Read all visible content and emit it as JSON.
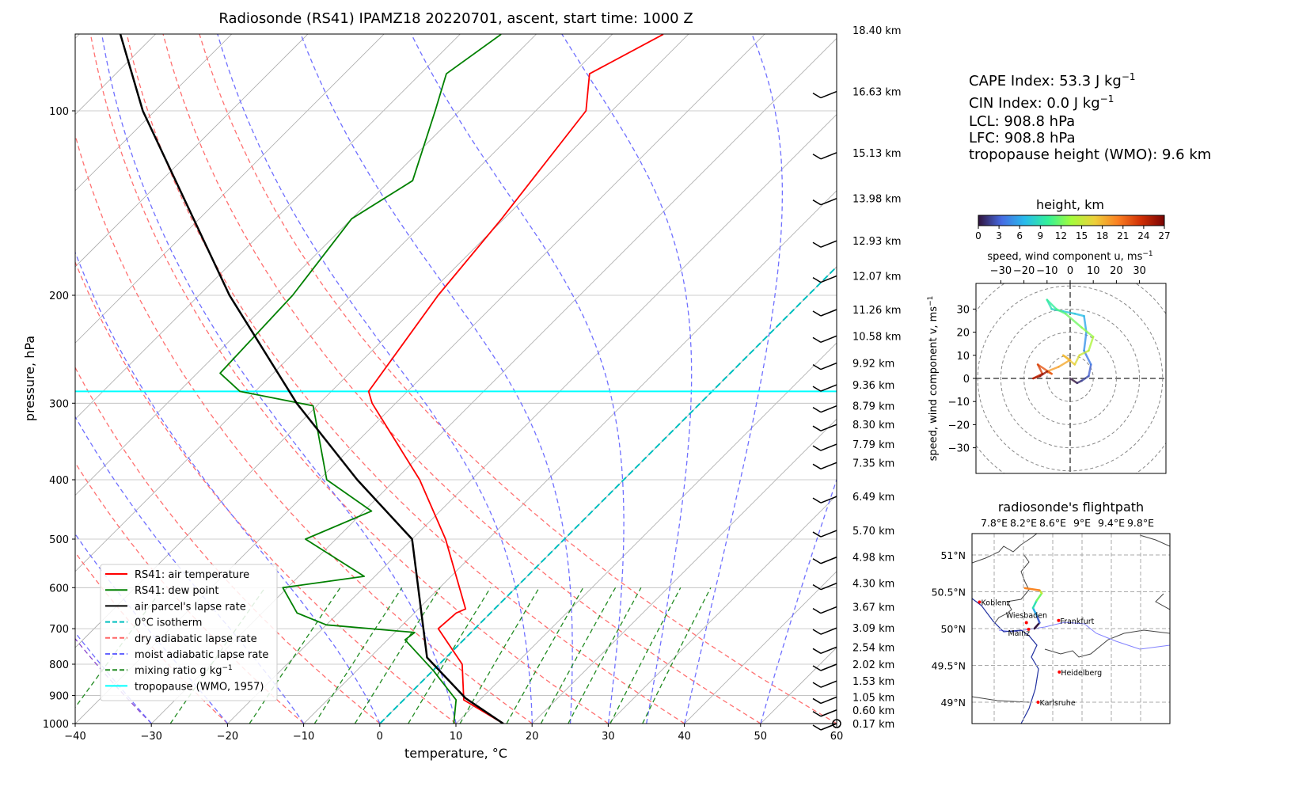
{
  "chart_data": [
    {
      "type": "line",
      "subtype": "skew-t log-p",
      "title": "Radiosonde (RS41) IPAMZ18 20220701, ascent, start time: 1000 Z",
      "xlabel": "temperature, °C",
      "ylabel": "pressure, hPa",
      "xlim": [
        -40,
        60
      ],
      "ylim": [
        1000,
        75
      ],
      "xticks": [
        -40,
        -30,
        -20,
        -10,
        0,
        10,
        20,
        30,
        40,
        50,
        60
      ],
      "yticks": [
        100,
        200,
        300,
        400,
        500,
        600,
        700,
        800,
        900,
        1000
      ],
      "legend": {
        "placement": "lower-left",
        "entries": [
          {
            "label": "RS41: air temperature",
            "color": "#ff0000",
            "style": "solid"
          },
          {
            "label": "RS41: dew point",
            "color": "#008000",
            "style": "solid"
          },
          {
            "label": "air parcel's lapse rate",
            "color": "#000000",
            "style": "solid"
          },
          {
            "label": "0°C isotherm",
            "color": "#00bfbf",
            "style": "dashed"
          },
          {
            "label": "dry adiabatic lapse rate",
            "color": "#ff6666",
            "style": "dashed"
          },
          {
            "label": "moist adiabatic lapse rate",
            "color": "#6666ff",
            "style": "dashed"
          },
          {
            "label": "mixing ratio g kg",
            "sup": "−1",
            "color": "#228b22",
            "style": "dashed"
          },
          {
            "label": "tropopause (WMO, 1957)",
            "color": "#00ffff",
            "style": "solid"
          }
        ]
      },
      "series": [
        {
          "name": "RS41: air temperature",
          "pressure": [
            1000,
            915,
            800,
            700,
            660,
            650,
            500,
            400,
            300,
            287,
            200,
            150,
            100,
            87,
            75
          ],
          "temperature": [
            16.2,
            7.9,
            3.0,
            -4.8,
            -4.5,
            -3.8,
            -15.6,
            -26.8,
            -43.1,
            -45.1,
            -48.6,
            -50.3,
            -53.4,
            -57.8,
            -53.3
          ]
        },
        {
          "name": "RS41: dew point",
          "pressure": [
            1000,
            915,
            820,
            730,
            710,
            690,
            660,
            600,
            575,
            500,
            450,
            400,
            303,
            287,
            268,
            200,
            150,
            130,
            100,
            87,
            75
          ],
          "temperature": [
            9.7,
            6.9,
            0.1,
            -7.7,
            -7.4,
            -20,
            -25.4,
            -30.6,
            -21.4,
            -34,
            -29,
            -39,
            -50.5,
            -62,
            -67,
            -67.7,
            -70,
            -67,
            -73.2,
            -76.6,
            -74.6
          ]
        },
        {
          "name": "air parcel's lapse rate",
          "pressure": [
            1000,
            909,
            780,
            500,
            400,
            300,
            200,
            100,
            75
          ],
          "temperature": [
            16.2,
            7.9,
            -2.5,
            -20,
            -35,
            -53,
            -76,
            -111.6,
            -124.6
          ]
        }
      ],
      "tropopause_hpa": 287,
      "height_labels": [
        {
          "p": 1000,
          "label": "0.17 km"
        },
        {
          "p": 950,
          "label": "0.60 km"
        },
        {
          "p": 905,
          "label": "1.05 km"
        },
        {
          "p": 852,
          "label": "1.53 km"
        },
        {
          "p": 800,
          "label": "2.02 km"
        },
        {
          "p": 750,
          "label": "2.54 km"
        },
        {
          "p": 698,
          "label": "3.09 km"
        },
        {
          "p": 645,
          "label": "3.67 km"
        },
        {
          "p": 590,
          "label": "4.30 km"
        },
        {
          "p": 535,
          "label": "4.98 km"
        },
        {
          "p": 484,
          "label": "5.70 km"
        },
        {
          "p": 426,
          "label": "6.49 km"
        },
        {
          "p": 375,
          "label": "7.35 km"
        },
        {
          "p": 350,
          "label": "7.79 km"
        },
        {
          "p": 325,
          "label": "8.30 km"
        },
        {
          "p": 303,
          "label": "8.79 km"
        },
        {
          "p": 280,
          "label": "9.36 km"
        },
        {
          "p": 258,
          "label": "9.92 km"
        },
        {
          "p": 233,
          "label": "10.58 km"
        },
        {
          "p": 211,
          "label": "11.26 km"
        },
        {
          "p": 186,
          "label": "12.07 km"
        },
        {
          "p": 163,
          "label": "12.93 km"
        },
        {
          "p": 139,
          "label": "13.98 km"
        },
        {
          "p": 117,
          "label": "15.13 km"
        },
        {
          "p": 93,
          "label": "16.63 km"
        },
        {
          "p": 72,
          "label": "18.40 km"
        }
      ]
    },
    {
      "type": "line",
      "subtype": "hodograph",
      "xlabel": "speed, wind component u, ms",
      "ylabel": "speed, wind component v, ms",
      "unit_sup": "−1",
      "xticks": [
        -30,
        -20,
        -10,
        0,
        10,
        20,
        30
      ],
      "yticks": [
        30,
        20,
        10,
        0,
        -10,
        -20,
        -30
      ],
      "lim": [
        -41,
        41
      ],
      "colorbar": {
        "title": "height, km",
        "ticks": [
          0,
          3,
          6,
          9,
          12,
          15,
          18,
          21,
          24,
          27
        ]
      },
      "points_u_v_h": [
        [
          0,
          0,
          0
        ],
        [
          3,
          -2,
          1
        ],
        [
          5,
          -1,
          2
        ],
        [
          8,
          1,
          3
        ],
        [
          9,
          6,
          4
        ],
        [
          6,
          12,
          5
        ],
        [
          7,
          20,
          6
        ],
        [
          6,
          27,
          7
        ],
        [
          2,
          28,
          7.5
        ],
        [
          -3,
          29,
          8
        ],
        [
          -8,
          30,
          9
        ],
        [
          -10,
          34,
          10
        ],
        [
          -6,
          30,
          11
        ],
        [
          -2,
          28,
          12
        ],
        [
          5,
          22,
          13
        ],
        [
          10,
          18,
          14
        ],
        [
          8,
          12,
          15
        ],
        [
          4,
          10,
          16
        ],
        [
          2,
          6,
          17
        ],
        [
          -3,
          10,
          18
        ],
        [
          0,
          8,
          18.5
        ],
        [
          -5,
          5,
          19
        ],
        [
          -10,
          3,
          21
        ],
        [
          -8,
          2,
          22
        ],
        [
          -14,
          6,
          23
        ],
        [
          -12,
          2,
          24
        ],
        [
          -16,
          0,
          25
        ],
        [
          -13,
          1,
          26
        ],
        [
          -10,
          3,
          27
        ]
      ]
    },
    {
      "type": "map",
      "title": "radiosonde's flightpath",
      "lon_ticks": [
        "7.8°E",
        "8.2°E",
        "8.6°E",
        "9°E",
        "9.4°E",
        "9.8°E"
      ],
      "lat_ticks": [
        "51°N",
        "50.5°N",
        "50°N",
        "49.5°N",
        "49°N"
      ],
      "cities": [
        {
          "name": "Koblenz",
          "lon": 7.6,
          "lat": 50.36
        },
        {
          "name": "Wiesbaden",
          "lon": 8.24,
          "lat": 50.08
        },
        {
          "name": "Mainz",
          "lon": 8.27,
          "lat": 49.99
        },
        {
          "name": "Frankfurt",
          "lon": 8.68,
          "lat": 50.11
        },
        {
          "name": "Heidelberg",
          "lon": 8.69,
          "lat": 49.41
        },
        {
          "name": "Karlsruhe",
          "lon": 8.4,
          "lat": 49.0
        }
      ],
      "flightpath": [
        [
          8.35,
          50.0,
          0
        ],
        [
          8.42,
          50.08,
          3
        ],
        [
          8.38,
          50.18,
          6
        ],
        [
          8.33,
          50.28,
          9
        ],
        [
          8.38,
          50.38,
          12
        ],
        [
          8.45,
          50.48,
          15
        ],
        [
          8.42,
          50.52,
          20
        ],
        [
          8.22,
          50.55,
          27
        ]
      ]
    }
  ],
  "info": {
    "cape": "CAPE Index: 53.3 J kg",
    "cin": "CIN Index: 0.0 J kg",
    "sup": "−1",
    "lcl": "LCL: 908.8 hPa",
    "lfc": "LFC: 908.8 hPa",
    "tropo": "tropopause height (WMO): 9.6 km"
  }
}
